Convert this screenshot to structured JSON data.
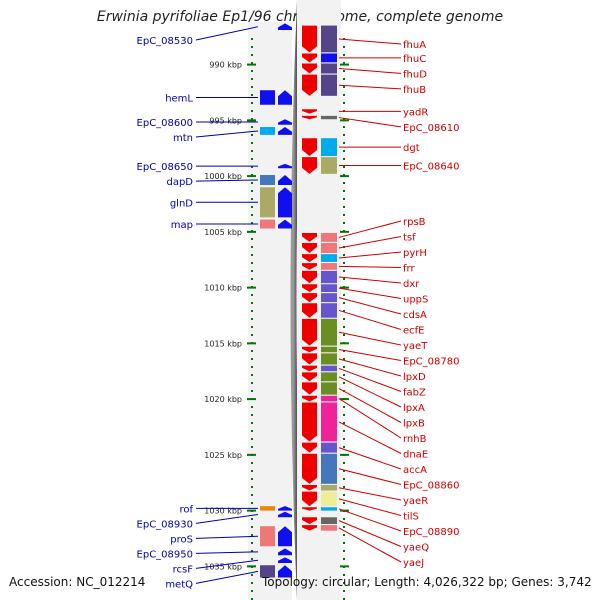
{
  "title": "Erwinia pyrifoliae Ep1/96 chromosome, complete genome",
  "footer": {
    "accession": "Accession: NC_012214",
    "summary": "Topology: circular; Length: 4,026,322 bp; Genes: 3,742"
  },
  "colors": {
    "left_label": "#0000aa",
    "right_label": "#cc0000",
    "forward_gene": "#1010ee",
    "reverse_gene": "#ee0000",
    "scale_tick": "#007700"
  },
  "scale": {
    "start_kbp": 986,
    "end_kbp": 1036,
    "ticks": [
      {
        "label": "990 kbp",
        "kbp": 990
      },
      {
        "label": "995 kbp",
        "kbp": 995
      },
      {
        "label": "1000 kbp",
        "kbp": 1000
      },
      {
        "label": "1005 kbp",
        "kbp": 1005
      },
      {
        "label": "1010 kbp",
        "kbp": 1010
      },
      {
        "label": "1015 kbp",
        "kbp": 1015
      },
      {
        "label": "1020 kbp",
        "kbp": 1020
      },
      {
        "label": "1025 kbp",
        "kbp": 1025
      },
      {
        "label": "1030 kbp",
        "kbp": 1030
      },
      {
        "label": "1035 kbp",
        "kbp": 1035
      }
    ]
  },
  "left_genes": [
    {
      "name": "EpC_08530",
      "start": 986.3,
      "end": 986.9,
      "color": "#ffffff"
    },
    {
      "name": "hemL",
      "start": 992.3,
      "end": 993.6,
      "color": "#1010ee"
    },
    {
      "name": "EpC_08600",
      "start": 994.9,
      "end": 995.4,
      "color": "#ffffff"
    },
    {
      "name": "mtn",
      "start": 995.6,
      "end": 996.3,
      "color": "#00aaee"
    },
    {
      "name": "EpC_08650",
      "start": 998.9,
      "end": 999.3,
      "color": "#ffffff"
    },
    {
      "name": "dapD",
      "start": 999.9,
      "end": 1000.8,
      "color": "#4477bb"
    },
    {
      "name": "glnD",
      "start": 1001.0,
      "end": 1003.7,
      "color": "#aaaa66"
    },
    {
      "name": "map",
      "start": 1003.9,
      "end": 1004.7,
      "color": "#ee7777"
    },
    {
      "name": "rof",
      "start": 1029.6,
      "end": 1030.0,
      "color": "#ee8800"
    },
    {
      "name": "EpC_08930",
      "start": 1030.1,
      "end": 1030.6,
      "color": "#ffffff"
    },
    {
      "name": "proS",
      "start": 1031.4,
      "end": 1033.2,
      "color": "#ee7777"
    },
    {
      "name": "EpC_08950",
      "start": 1033.4,
      "end": 1034.0,
      "color": "#ffffff"
    },
    {
      "name": "rcsF",
      "start": 1034.2,
      "end": 1034.7,
      "color": "#ffffff"
    },
    {
      "name": "metQ",
      "start": 1034.9,
      "end": 1036.0,
      "color": "#554488"
    }
  ],
  "right_genes": [
    {
      "name": "fhuA",
      "start": 986.5,
      "end": 988.9,
      "color": "#554488"
    },
    {
      "name": "fhuC",
      "start": 989.0,
      "end": 989.8,
      "color": "#1010ee"
    },
    {
      "name": "fhuD",
      "start": 989.9,
      "end": 990.8,
      "color": "#554488"
    },
    {
      "name": "fhuB",
      "start": 990.9,
      "end": 992.8,
      "color": "#554488"
    },
    {
      "name": "yadR",
      "start": 994.0,
      "end": 994.4,
      "color": "#ffffff"
    },
    {
      "name": "EpC_08610",
      "start": 994.6,
      "end": 994.9,
      "color": "#666666"
    },
    {
      "name": "dgt",
      "start": 996.6,
      "end": 998.2,
      "color": "#00aaee"
    },
    {
      "name": "EpC_08640",
      "start": 998.3,
      "end": 999.8,
      "color": "#aaaa66"
    },
    {
      "name": "rpsB",
      "start": 1005.1,
      "end": 1005.9,
      "color": "#ee7777"
    },
    {
      "name": "tsf",
      "start": 1006.0,
      "end": 1006.9,
      "color": "#ee7777"
    },
    {
      "name": "pyrH",
      "start": 1007.0,
      "end": 1007.7,
      "color": "#00aaee"
    },
    {
      "name": "frr",
      "start": 1007.8,
      "end": 1008.4,
      "color": "#ee7777"
    },
    {
      "name": "dxr",
      "start": 1008.5,
      "end": 1009.6,
      "color": "#6655cc"
    },
    {
      "name": "uppS",
      "start": 1009.7,
      "end": 1010.4,
      "color": "#6655cc"
    },
    {
      "name": "cdsA",
      "start": 1010.5,
      "end": 1011.3,
      "color": "#6655cc"
    },
    {
      "name": "ecfE",
      "start": 1011.4,
      "end": 1012.7,
      "color": "#6655cc"
    },
    {
      "name": "yaeT",
      "start": 1012.8,
      "end": 1015.2,
      "color": "#6b8e23"
    },
    {
      "name": "EpC_08780",
      "start": 1015.3,
      "end": 1015.8,
      "color": "#6b8e23"
    },
    {
      "name": "lpxD",
      "start": 1015.9,
      "end": 1016.9,
      "color": "#6b8e23"
    },
    {
      "name": "fabZ",
      "start": 1017.0,
      "end": 1017.5,
      "color": "#6655cc"
    },
    {
      "name": "lpxA",
      "start": 1017.6,
      "end": 1018.4,
      "color": "#6b8e23"
    },
    {
      "name": "lpxB",
      "start": 1018.5,
      "end": 1019.6,
      "color": "#6b8e23"
    },
    {
      "name": "rnhB",
      "start": 1019.7,
      "end": 1020.2,
      "color": "#ee2299"
    },
    {
      "name": "dnaE",
      "start": 1020.3,
      "end": 1023.8,
      "color": "#ee2299"
    },
    {
      "name": "accA",
      "start": 1023.9,
      "end": 1024.8,
      "color": "#6655cc"
    },
    {
      "name": "EpC_08860",
      "start": 1024.9,
      "end": 1027.6,
      "color": "#4477bb"
    },
    {
      "name": "yaeR",
      "start": 1027.7,
      "end": 1028.2,
      "color": "#aaaa66"
    },
    {
      "name": "tilS",
      "start": 1028.3,
      "end": 1029.6,
      "color": "#eeee99"
    },
    {
      "name": "EpC_08890",
      "start": 1029.7,
      "end": 1030.0,
      "color": "#00aaee"
    },
    {
      "name": "yaeQ",
      "start": 1030.6,
      "end": 1031.2,
      "color": "#666666"
    },
    {
      "name": "yaeJ",
      "start": 1031.3,
      "end": 1031.8,
      "color": "#ee7777"
    }
  ]
}
